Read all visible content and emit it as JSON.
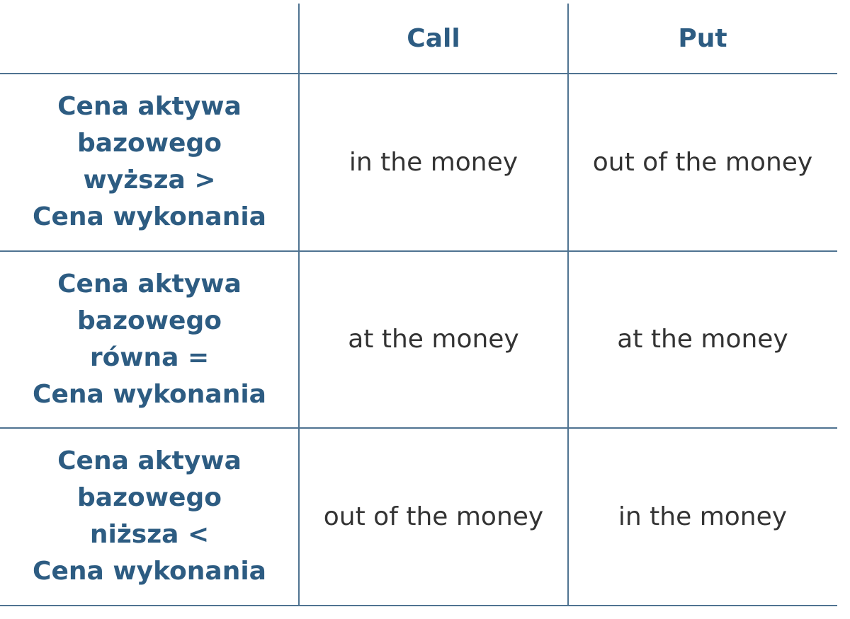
{
  "table": {
    "columns": [
      "Call",
      "Put"
    ],
    "rows": [
      {
        "header": [
          "Cena aktywa",
          "bazowego",
          "wyższa >",
          "Cena wykonania"
        ],
        "cells": [
          "in the money",
          "out of the money"
        ]
      },
      {
        "header": [
          "Cena aktywa",
          "bazowego",
          "równa =",
          "Cena wykonania"
        ],
        "cells": [
          "at the money",
          "at the money"
        ]
      },
      {
        "header": [
          "Cena aktywa",
          "bazowego",
          "niższa <",
          "Cena wykonania"
        ],
        "cells": [
          "out of the money",
          "in the money"
        ]
      }
    ]
  }
}
